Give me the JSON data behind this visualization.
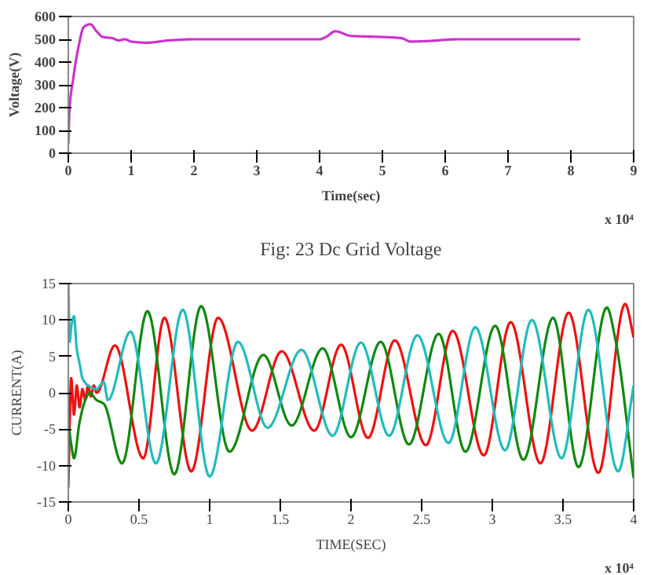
{
  "chart_data": [
    {
      "type": "line",
      "title": "Fig: 23 Dc Grid Voltage",
      "xlabel": "Time(sec)",
      "ylabel": "Voltage(V)",
      "annotations": [
        "x 10⁴"
      ],
      "xlim": [
        0,
        9
      ],
      "xticks": [
        0,
        1,
        2,
        3,
        4,
        5,
        6,
        7,
        8,
        9
      ],
      "ylim": [
        0,
        600
      ],
      "yticks": [
        0,
        100,
        200,
        300,
        400,
        500,
        600
      ],
      "series": [
        {
          "color": "#cc33cc",
          "x": [
            0,
            0.02,
            0.08,
            0.15,
            0.25,
            0.35,
            0.45,
            0.55,
            0.7,
            0.8,
            0.9,
            1.0,
            1.25,
            1.6,
            2.0,
            3.0,
            4.0,
            4.1,
            4.25,
            4.5,
            5.0,
            5.3,
            5.45,
            5.7,
            6.2,
            7.0,
            8.15
          ],
          "values": [
            40,
            200,
            330,
            450,
            555,
            566,
            535,
            510,
            505,
            495,
            500,
            490,
            485,
            495,
            500,
            500,
            500,
            510,
            535,
            515,
            510,
            505,
            490,
            492,
            500,
            500,
            500
          ]
        }
      ]
    },
    {
      "type": "line",
      "xlabel": "TIME(SEC)",
      "ylabel": "CURRENT(A)",
      "annotations": [
        "x 10⁴"
      ],
      "xlim": [
        0,
        4
      ],
      "xticks": [
        0,
        0.5,
        1,
        1.5,
        2,
        2.5,
        3,
        3.5,
        4
      ],
      "ylim": [
        -15,
        15
      ],
      "yticks": [
        -15,
        -10,
        -5,
        0,
        5,
        10,
        15
      ],
      "series": [
        {
          "color": "#ee1111",
          "x": [
            0,
            0.01,
            0.02,
            0.04,
            0.06,
            0.08,
            0.1,
            0.12,
            0.14,
            0.16,
            0.18,
            0.2,
            0.33,
            0.53,
            0.68,
            0.87,
            1.06,
            1.3,
            1.51,
            1.74,
            1.93,
            2.12,
            2.31,
            2.53,
            2.72,
            2.94,
            3.13,
            3.34,
            3.54,
            3.75,
            3.94,
            4.0
          ],
          "values": [
            -13,
            -4,
            2,
            -3,
            1,
            -2,
            0.5,
            -1,
            1,
            -0.5,
            1,
            0,
            6.5,
            -9,
            10.3,
            -10.8,
            10.3,
            -5.2,
            5.7,
            -5.2,
            6.6,
            -6.2,
            7.2,
            -7.2,
            8.5,
            -8.6,
            9.7,
            -9.7,
            11,
            -11,
            12.2,
            7.6
          ]
        },
        {
          "color": "#118811",
          "x": [
            0,
            0.02,
            0.04,
            0.08,
            0.12,
            0.15,
            0.2,
            0.25,
            0.38,
            0.56,
            0.75,
            0.94,
            1.14,
            1.38,
            1.58,
            1.8,
            2.0,
            2.21,
            2.41,
            2.62,
            2.81,
            3.02,
            3.22,
            3.43,
            3.61,
            3.81,
            3.87,
            4.0
          ],
          "values": [
            -4,
            -7,
            -9,
            -4,
            -1,
            0,
            -1,
            -1.5,
            -9.7,
            11.2,
            -11.2,
            11.9,
            -8.1,
            5.2,
            -4.5,
            6.1,
            -6.1,
            7,
            -7.1,
            8.1,
            -8.1,
            9.2,
            -9.2,
            10.3,
            -10.2,
            11.7,
            7.4,
            -11.7
          ]
        },
        {
          "color": "#22bbbb",
          "x": [
            0,
            0.01,
            0.02,
            0.04,
            0.06,
            0.08,
            0.1,
            0.14,
            0.2,
            0.25,
            0.28,
            0.44,
            0.62,
            0.81,
            1.0,
            1.2,
            1.41,
            1.65,
            1.87,
            2.07,
            2.27,
            2.47,
            2.69,
            2.88,
            3.09,
            3.28,
            3.49,
            3.68,
            3.89,
            4.0
          ],
          "values": [
            15,
            7,
            9,
            10.5,
            6,
            4,
            2,
            1,
            0.5,
            1.5,
            -1,
            8.4,
            -9.7,
            11.4,
            -11.5,
            7,
            -4.8,
            5.9,
            -5.9,
            6.9,
            -5.9,
            7.9,
            -6.9,
            9,
            -7.9,
            10,
            -9,
            11.4,
            -10.8,
            1
          ]
        }
      ]
    }
  ]
}
